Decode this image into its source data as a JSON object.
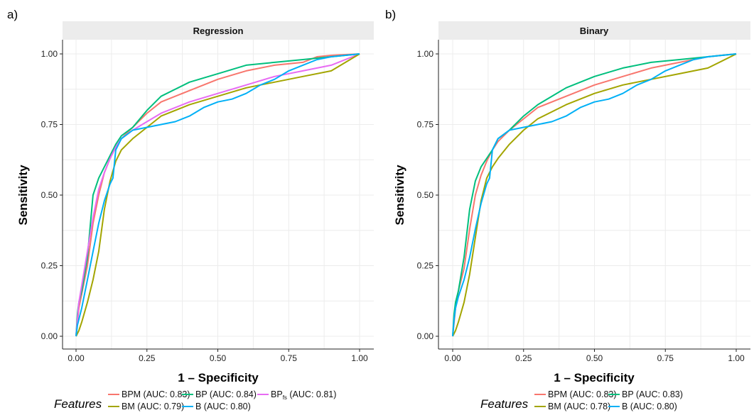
{
  "panel_letters": [
    "a)",
    "b)"
  ],
  "xlabel": "1 – Specificity",
  "ylabel": "Sensitivity",
  "legend_title": "Features",
  "colors": {
    "BPM": "#F8766D",
    "BM": "#A3A500",
    "BP": "#00BF7D",
    "B": "#00B0F6",
    "BPfs": "#E76BF3"
  },
  "chart_data": [
    {
      "type": "line",
      "title": "Regression",
      "xlim": [
        0,
        1
      ],
      "ylim": [
        0,
        1
      ],
      "xticks": [
        "0.00",
        "0.25",
        "0.50",
        "0.75",
        "1.00"
      ],
      "yticks": [
        "0.00",
        "0.25",
        "0.50",
        "0.75",
        "1.00"
      ],
      "grid": true,
      "legend_position": "bottom",
      "series": [
        {
          "key": "BPM",
          "name": "BPM (AUC: 0.83)",
          "label_main": "BPM (AUC: 0.83)",
          "label_sub": "",
          "x": [
            0,
            0.01,
            0.02,
            0.04,
            0.06,
            0.08,
            0.1,
            0.12,
            0.14,
            0.16,
            0.2,
            0.25,
            0.3,
            0.4,
            0.5,
            0.6,
            0.7,
            0.8,
            0.85,
            0.9,
            1.0
          ],
          "y": [
            0,
            0.1,
            0.15,
            0.25,
            0.4,
            0.5,
            0.58,
            0.63,
            0.67,
            0.7,
            0.74,
            0.79,
            0.83,
            0.87,
            0.91,
            0.94,
            0.96,
            0.97,
            0.99,
            0.995,
            1.0
          ]
        },
        {
          "key": "BP",
          "name": "BP (AUC: 0.84)",
          "label_main": "BP (AUC: 0.84)",
          "label_sub": "",
          "x": [
            0,
            0.005,
            0.01,
            0.02,
            0.04,
            0.06,
            0.08,
            0.1,
            0.12,
            0.14,
            0.16,
            0.2,
            0.25,
            0.3,
            0.4,
            0.5,
            0.6,
            0.7,
            0.8,
            0.9,
            1.0
          ],
          "y": [
            0,
            0.08,
            0.12,
            0.16,
            0.28,
            0.5,
            0.56,
            0.6,
            0.64,
            0.68,
            0.71,
            0.74,
            0.8,
            0.85,
            0.9,
            0.93,
            0.96,
            0.97,
            0.98,
            0.99,
            1.0
          ]
        },
        {
          "key": "BPfs",
          "name": "BPfs (AUC: 0.81)",
          "label_main": "BP",
          "label_sub": "fs",
          "label_tail": " (AUC: 0.81)",
          "x": [
            0,
            0.01,
            0.02,
            0.04,
            0.06,
            0.08,
            0.1,
            0.12,
            0.14,
            0.16,
            0.2,
            0.25,
            0.3,
            0.4,
            0.5,
            0.6,
            0.7,
            0.8,
            0.9,
            1.0
          ],
          "y": [
            0,
            0.12,
            0.18,
            0.3,
            0.42,
            0.52,
            0.58,
            0.63,
            0.67,
            0.7,
            0.73,
            0.76,
            0.79,
            0.83,
            0.86,
            0.89,
            0.92,
            0.94,
            0.96,
            1.0
          ]
        },
        {
          "key": "BM",
          "name": "BM (AUC: 0.79)",
          "label_main": "BM (AUC: 0.79)",
          "label_sub": "",
          "x": [
            0,
            0.01,
            0.02,
            0.04,
            0.06,
            0.08,
            0.1,
            0.12,
            0.14,
            0.16,
            0.2,
            0.25,
            0.3,
            0.4,
            0.5,
            0.6,
            0.7,
            0.8,
            0.9,
            1.0
          ],
          "y": [
            0,
            0.02,
            0.05,
            0.12,
            0.2,
            0.3,
            0.45,
            0.55,
            0.62,
            0.66,
            0.7,
            0.74,
            0.78,
            0.82,
            0.85,
            0.88,
            0.9,
            0.92,
            0.94,
            1.0
          ]
        },
        {
          "key": "B",
          "name": "B (AUC: 0.80)",
          "label_main": "B (AUC: 0.80)",
          "label_sub": "",
          "x": [
            0,
            0.005,
            0.01,
            0.02,
            0.04,
            0.06,
            0.08,
            0.1,
            0.12,
            0.13,
            0.14,
            0.16,
            0.2,
            0.25,
            0.3,
            0.35,
            0.4,
            0.45,
            0.5,
            0.55,
            0.6,
            0.65,
            0.7,
            0.75,
            0.8,
            0.85,
            0.9,
            1.0
          ],
          "y": [
            0,
            0.04,
            0.06,
            0.1,
            0.2,
            0.3,
            0.4,
            0.48,
            0.54,
            0.56,
            0.66,
            0.7,
            0.73,
            0.74,
            0.75,
            0.76,
            0.78,
            0.81,
            0.83,
            0.84,
            0.86,
            0.89,
            0.91,
            0.94,
            0.96,
            0.98,
            0.99,
            1.0
          ]
        }
      ]
    },
    {
      "type": "line",
      "title": "Binary",
      "xlim": [
        0,
        1
      ],
      "ylim": [
        0,
        1
      ],
      "xticks": [
        "0.00",
        "0.25",
        "0.50",
        "0.75",
        "1.00"
      ],
      "yticks": [
        "0.00",
        "0.25",
        "0.50",
        "0.75",
        "1.00"
      ],
      "grid": true,
      "legend_position": "bottom",
      "series": [
        {
          "key": "BPM",
          "name": "BPM (AUC: 0.83)",
          "label_main": "BPM (AUC: 0.83)",
          "label_sub": "",
          "x": [
            0,
            0.01,
            0.02,
            0.04,
            0.06,
            0.08,
            0.1,
            0.12,
            0.14,
            0.16,
            0.2,
            0.25,
            0.3,
            0.4,
            0.5,
            0.6,
            0.7,
            0.8,
            0.9,
            1.0
          ],
          "y": [
            0,
            0.1,
            0.16,
            0.24,
            0.38,
            0.5,
            0.57,
            0.62,
            0.66,
            0.69,
            0.73,
            0.77,
            0.81,
            0.85,
            0.89,
            0.92,
            0.95,
            0.97,
            0.99,
            1.0
          ]
        },
        {
          "key": "BP",
          "name": "BP (AUC: 0.83)",
          "label_main": "BP (AUC: 0.83)",
          "label_sub": "",
          "x": [
            0,
            0.005,
            0.01,
            0.02,
            0.04,
            0.06,
            0.08,
            0.1,
            0.12,
            0.14,
            0.16,
            0.2,
            0.25,
            0.3,
            0.4,
            0.5,
            0.6,
            0.7,
            0.8,
            0.9,
            1.0
          ],
          "y": [
            0,
            0.08,
            0.12,
            0.16,
            0.28,
            0.45,
            0.55,
            0.6,
            0.63,
            0.66,
            0.7,
            0.73,
            0.78,
            0.82,
            0.88,
            0.92,
            0.95,
            0.97,
            0.98,
            0.99,
            1.0
          ]
        },
        {
          "key": "BM",
          "name": "BM (AUC: 0.78)",
          "label_main": "BM (AUC: 0.78)",
          "label_sub": "",
          "x": [
            0,
            0.01,
            0.02,
            0.04,
            0.06,
            0.08,
            0.1,
            0.12,
            0.14,
            0.16,
            0.2,
            0.25,
            0.3,
            0.4,
            0.5,
            0.6,
            0.7,
            0.8,
            0.9,
            1.0
          ],
          "y": [
            0,
            0.02,
            0.05,
            0.12,
            0.22,
            0.35,
            0.48,
            0.56,
            0.6,
            0.63,
            0.68,
            0.73,
            0.77,
            0.82,
            0.86,
            0.89,
            0.91,
            0.93,
            0.95,
            1.0
          ]
        },
        {
          "key": "B",
          "name": "B (AUC: 0.80)",
          "label_main": "B (AUC: 0.80)",
          "label_sub": "",
          "x": [
            0,
            0.005,
            0.01,
            0.02,
            0.04,
            0.06,
            0.08,
            0.1,
            0.12,
            0.13,
            0.14,
            0.16,
            0.2,
            0.25,
            0.3,
            0.35,
            0.4,
            0.45,
            0.5,
            0.55,
            0.6,
            0.65,
            0.7,
            0.75,
            0.8,
            0.85,
            0.9,
            1.0
          ],
          "y": [
            0,
            0.06,
            0.1,
            0.14,
            0.2,
            0.28,
            0.38,
            0.47,
            0.54,
            0.56,
            0.66,
            0.7,
            0.73,
            0.74,
            0.75,
            0.76,
            0.78,
            0.81,
            0.83,
            0.84,
            0.86,
            0.89,
            0.91,
            0.94,
            0.96,
            0.98,
            0.99,
            1.0
          ]
        }
      ]
    }
  ]
}
